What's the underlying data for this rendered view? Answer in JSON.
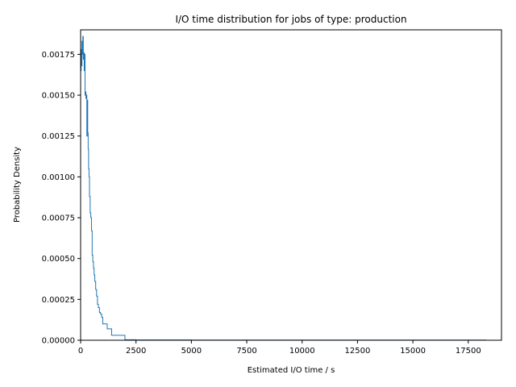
{
  "chart_data": {
    "type": "line",
    "title": "I/O time distribution for jobs of type: production",
    "xlabel": "Estimated I/O time / s",
    "ylabel": "Probability Density",
    "xlim": [
      0,
      19000
    ],
    "ylim": [
      0,
      0.0019
    ],
    "x_ticks": [
      0,
      2500,
      5000,
      7500,
      10000,
      12500,
      15000,
      17500
    ],
    "x_tick_labels": [
      "0",
      "2500",
      "5000",
      "7500",
      "10000",
      "12500",
      "15000",
      "17500"
    ],
    "y_ticks": [
      0,
      0.00025,
      0.0005,
      0.00075,
      0.001,
      0.00125,
      0.0015,
      0.00175
    ],
    "y_tick_labels": [
      "0.00000",
      "0.00025",
      "0.00050",
      "0.00075",
      "0.00100",
      "0.00125",
      "0.00150",
      "0.00175"
    ],
    "grid": false,
    "line_color": "#1f77b4",
    "series": [
      {
        "x": [
          0,
          20,
          40,
          60,
          80,
          100,
          120,
          140,
          160,
          180,
          200,
          220,
          240,
          260,
          280,
          300,
          320,
          340,
          360,
          380,
          400,
          430,
          460,
          490,
          520,
          550,
          580,
          610,
          640,
          680,
          720,
          760,
          800,
          850,
          900,
          950,
          1000,
          1100,
          1200,
          1300,
          1400,
          1500,
          1700,
          2000,
          2500,
          5000,
          10000,
          15000,
          18300
        ],
        "y": [
          0.00165,
          0.00178,
          0.00168,
          0.00183,
          0.00175,
          0.00186,
          0.00172,
          0.00176,
          0.00165,
          0.00175,
          0.0015,
          0.00152,
          0.00148,
          0.0015,
          0.00125,
          0.00147,
          0.00127,
          0.00117,
          0.00105,
          0.001,
          0.00088,
          0.00078,
          0.00075,
          0.00067,
          0.00052,
          0.00048,
          0.00044,
          0.0004,
          0.00036,
          0.00031,
          0.00027,
          0.00022,
          0.0002,
          0.00017,
          0.00016,
          0.00014,
          0.0001,
          0.0001,
          7e-05,
          7e-05,
          3e-05,
          3e-05,
          3e-05,
          3e-06,
          2e-06,
          1e-06,
          1e-06,
          1e-06,
          0
        ]
      }
    ]
  }
}
